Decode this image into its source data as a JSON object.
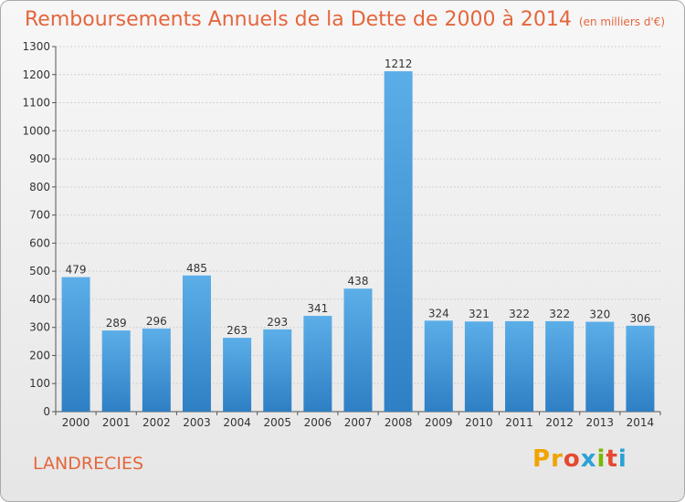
{
  "header": {
    "title": "Remboursements Annuels de la Dette de 2000 à 2014",
    "subtitle": "(en milliers d'€)"
  },
  "footer": {
    "place": "LANDRECIES",
    "logo": "Proxiti"
  },
  "colors": {
    "title": "#e4663c",
    "bar_top": "#5caee8",
    "bar_bottom": "#2e7fc4",
    "logo_letters": [
      "#f1a300",
      "#f1a300",
      "#e44a2f",
      "#2aa2d5",
      "#7ab800",
      "#e44a2f",
      "#2aa2d5"
    ]
  },
  "chart_data": {
    "type": "bar",
    "title": "Remboursements Annuels de la Dette de 2000 à 2014",
    "subtitle": "(en milliers d'€)",
    "xlabel": "",
    "ylabel": "",
    "categories": [
      "2000",
      "2001",
      "2002",
      "2003",
      "2004",
      "2005",
      "2006",
      "2007",
      "2008",
      "2009",
      "2010",
      "2011",
      "2012",
      "2013",
      "2014"
    ],
    "values": [
      479,
      289,
      296,
      485,
      263,
      293,
      341,
      438,
      1212,
      324,
      321,
      322,
      322,
      320,
      306
    ],
    "ylim": [
      0,
      1300
    ],
    "yticks": [
      0,
      100,
      200,
      300,
      400,
      500,
      600,
      700,
      800,
      900,
      1000,
      1100,
      1200,
      1300
    ],
    "grid": true,
    "legend": "none"
  }
}
